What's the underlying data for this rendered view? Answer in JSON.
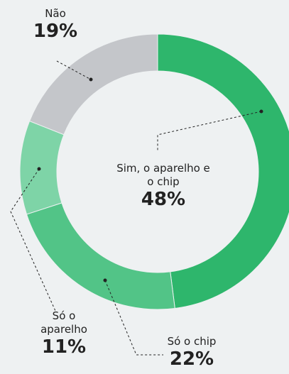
{
  "chart_data": {
    "type": "donut",
    "categories": [
      "Sim, o aparelho e o chip",
      "Só o chip",
      "Só o aparelho",
      "Não"
    ],
    "values": [
      48,
      22,
      11,
      19
    ],
    "value_labels": [
      "48%",
      "22%",
      "11%",
      "19%"
    ],
    "colors": [
      "#2eb66c",
      "#52c487",
      "#7ed4a7",
      "#c4c6ca"
    ]
  }
}
